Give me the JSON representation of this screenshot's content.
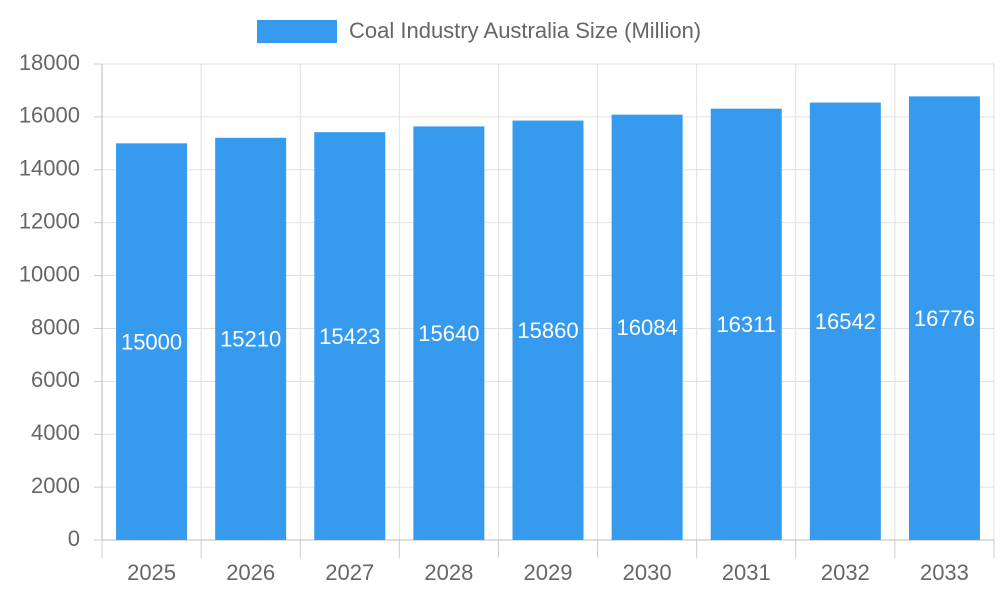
{
  "chart_data": {
    "type": "bar",
    "categories": [
      "2025",
      "2026",
      "2027",
      "2028",
      "2029",
      "2030",
      "2031",
      "2032",
      "2033"
    ],
    "series": [
      {
        "name": "Coal Industry Australia Size (Million)",
        "color": "#369bef",
        "values": [
          15000,
          15210,
          15423,
          15640,
          15860,
          16084,
          16311,
          16542,
          16776
        ]
      }
    ],
    "ylim": [
      0,
      18000
    ],
    "yticks": [
      0,
      2000,
      4000,
      6000,
      8000,
      10000,
      12000,
      14000,
      16000,
      18000
    ],
    "grid": true,
    "legend": "top"
  }
}
